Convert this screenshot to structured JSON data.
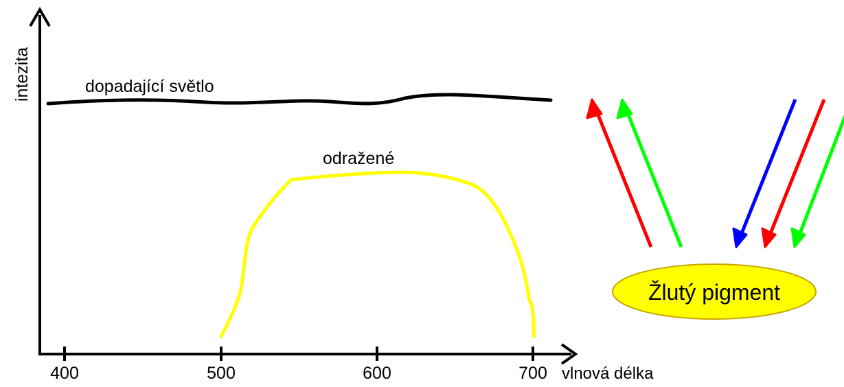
{
  "axes": {
    "y_label": "intezita",
    "x_label": "vlnová délka",
    "x_ticks": [
      "400",
      "500",
      "600",
      "700"
    ]
  },
  "curves": {
    "incident_label": "dopadající světlo",
    "reflected_label": "odražené",
    "incident_color": "#000000",
    "reflected_color": "#ffff00"
  },
  "pigment": {
    "label": "Žlutý pigment",
    "fill_color": "#ffff00",
    "outline_color": "#c9a400"
  },
  "arrows": {
    "reflected_colors": [
      "#ff0000",
      "#00ff00"
    ],
    "incoming_colors": [
      "#0000ff",
      "#ff0000",
      "#00ff00"
    ]
  }
}
